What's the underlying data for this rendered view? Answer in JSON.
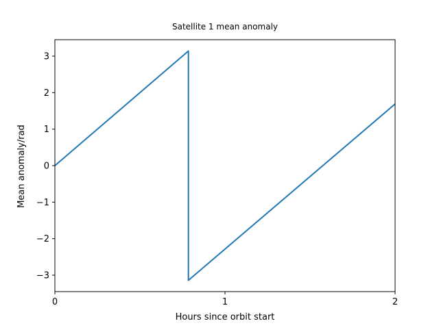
{
  "chart_data": {
    "type": "line",
    "title": "Satellite 1 mean anomaly",
    "xlabel": "Hours since orbit start",
    "ylabel": "Mean anomaly/rad",
    "xlim": [
      0,
      2
    ],
    "ylim": [
      -3.45,
      3.45
    ],
    "xticks": [
      0,
      1,
      2
    ],
    "xtick_labels": [
      "0",
      "1",
      "2"
    ],
    "yticks": [
      3,
      2,
      1,
      0,
      -1,
      -2,
      -3
    ],
    "ytick_labels": [
      "3",
      "2",
      "1",
      "0",
      "−1",
      "−2",
      "−3"
    ],
    "grid": false,
    "series": [
      {
        "color": "#1f77b4",
        "x": [
          0,
          0.785,
          0.785,
          2.0
        ],
        "y": [
          0,
          3.14,
          -3.14,
          1.69
        ]
      }
    ]
  }
}
